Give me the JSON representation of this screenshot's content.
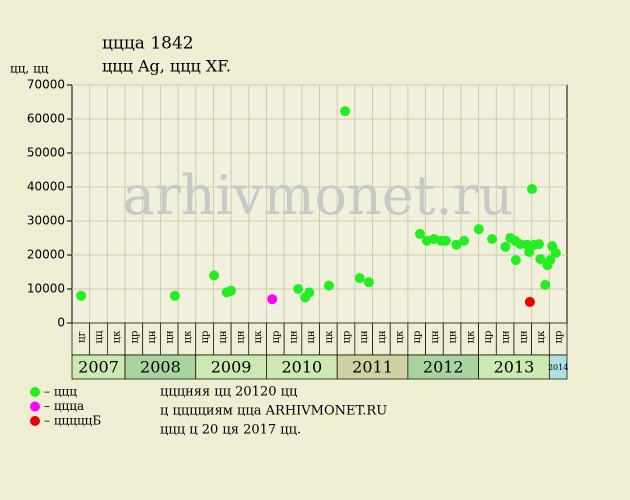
{
  "chart_data": {
    "type": "scatter",
    "title": "ццца 1842",
    "subtitle": "ццц Ag, ццц XF.",
    "y_label": "цц, цц",
    "watermark": "arhivmonet.ru",
    "xlim": [
      2007.2,
      2014.27
    ],
    "ylim": [
      0,
      70000
    ],
    "yticks": [
      0,
      10000,
      20000,
      30000,
      40000,
      50000,
      60000,
      70000
    ],
    "grid": true,
    "quarter_labels": [
      "цг",
      "цц",
      "цк",
      "цр",
      "цн",
      "цн",
      "цк",
      "цр",
      "цн",
      "цн",
      "цк",
      "цр",
      "цн",
      "цн",
      "цк",
      "цр",
      "цн",
      "цн",
      "цк",
      "цр",
      "цн",
      "цн",
      "цк",
      "цр",
      "цн",
      "цн",
      "цк",
      "цр"
    ],
    "years": [
      {
        "label": "2007",
        "quarters": 3,
        "color": "#cde8b0"
      },
      {
        "label": "2008",
        "quarters": 4,
        "color": "#a8d4a0"
      },
      {
        "label": "2009",
        "quarters": 4,
        "color": "#cde8b0"
      },
      {
        "label": "2010",
        "quarters": 4,
        "color": "#cde8b0"
      },
      {
        "label": "2011",
        "quarters": 4,
        "color": "#d0d0a0"
      },
      {
        "label": "2012",
        "quarters": 4,
        "color": "#a8d4a0"
      },
      {
        "label": "2013",
        "quarters": 4,
        "color": "#cde8b0"
      },
      {
        "label": "2014",
        "quarters": 1,
        "color": "#b0e0e0"
      }
    ],
    "series": [
      {
        "name": "– ццц",
        "color": "#22ee22",
        "x": [
          2007.33,
          2008.67,
          2009.23,
          2009.41,
          2009.47,
          2010.43,
          2010.53,
          2010.59,
          2010.87,
          2011.1,
          2011.31,
          2011.44,
          2012.17,
          2012.27,
          2012.37,
          2012.47,
          2012.54,
          2012.69,
          2012.8,
          2013.01,
          2013.2,
          2013.39,
          2013.46,
          2013.53,
          2013.54,
          2013.6,
          2013.7,
          2013.73,
          2013.77,
          2013.8,
          2013.87,
          2013.89,
          2013.96,
          2013.99,
          2014.03,
          2014.06,
          2014.11
        ],
        "values": [
          8000,
          8000,
          14000,
          9000,
          9500,
          10000,
          7500,
          9000,
          11000,
          62300,
          13200,
          12000,
          26200,
          24200,
          24700,
          24200,
          24200,
          23000,
          24200,
          27600,
          24700,
          22400,
          25000,
          24200,
          18500,
          23200,
          23000,
          20900,
          39400,
          23000,
          23200,
          18800,
          11200,
          17000,
          18500,
          22600,
          20600
        ]
      },
      {
        "name": "– ццца",
        "color": "#ff00ff",
        "x": [
          2010.06
        ],
        "values": [
          7000
        ]
      },
      {
        "name": "– цццццБ",
        "color": "#ee0000",
        "x": [
          2013.74
        ],
        "values": [
          6200
        ]
      }
    ],
    "footer": [
      "цццняя цц 20120 цц",
      "ц цццциям ццa ARHIVMONET.RU",
      "ццц ц 20 ця 2017 цц."
    ]
  }
}
